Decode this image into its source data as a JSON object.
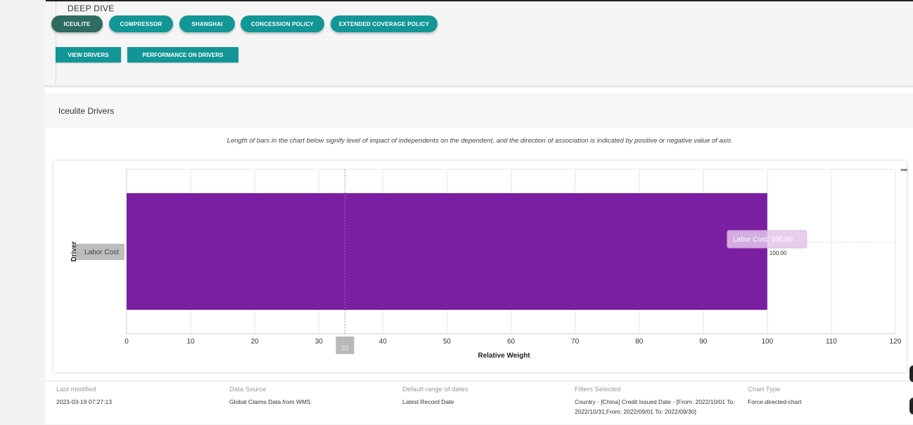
{
  "deep_dive": {
    "title": "DEEP DIVE",
    "tabs": [
      {
        "label": "ICEULITE",
        "active": true
      },
      {
        "label": "COMPRESSOR",
        "active": false
      },
      {
        "label": "SHANGHAI",
        "active": false
      },
      {
        "label": "CONCESSION POLICY",
        "active": false
      },
      {
        "label": "EXTENDED COVERAGE POLICY",
        "active": false
      }
    ],
    "actions": [
      {
        "label": "VIEW DRIVERS"
      },
      {
        "label": "PERFORMANCE ON DRIVERS"
      }
    ]
  },
  "drivers_section": {
    "title": "Iceulite Drivers",
    "caption": "Length of bars in the chart below signify level of impact of independents on the dependent, and the direction of association is indicated by positive or negative value of axis",
    "menu_label": "•••"
  },
  "chart_data": {
    "type": "bar",
    "orientation": "horizontal",
    "categories": [
      "Labor Cost"
    ],
    "values": [
      100.0
    ],
    "data_labels": [
      "100.00"
    ],
    "xlabel": "Relative Weight",
    "ylabel": "Driver",
    "xlim": [
      0,
      120
    ],
    "x_ticks": [
      0,
      10,
      20,
      30,
      40,
      50,
      60,
      70,
      80,
      90,
      100,
      110,
      120
    ],
    "grid": true,
    "bar_color": "#7b1fa2",
    "crosshair": {
      "x_value": 32,
      "x_label": "32",
      "category_label": "Labor Cost",
      "tooltip": "Labor Cost: 100.00"
    }
  },
  "footer": {
    "items": [
      {
        "label": "Last modified",
        "value": "2023-03-19 07:27:13"
      },
      {
        "label": "Data Source",
        "value": "Global Claims Data from WMS"
      },
      {
        "label": "Default range of dates",
        "value": "Latest Record Date"
      },
      {
        "label": "Filters Selected",
        "value": "Country - [China] Credit Issued Date - [From: 2022/10/01 To: 2022/10/31,From: 2022/09/01 To: 2022/09/30]"
      },
      {
        "label": "Chart Type",
        "value": "Force-directed-chart"
      }
    ]
  }
}
